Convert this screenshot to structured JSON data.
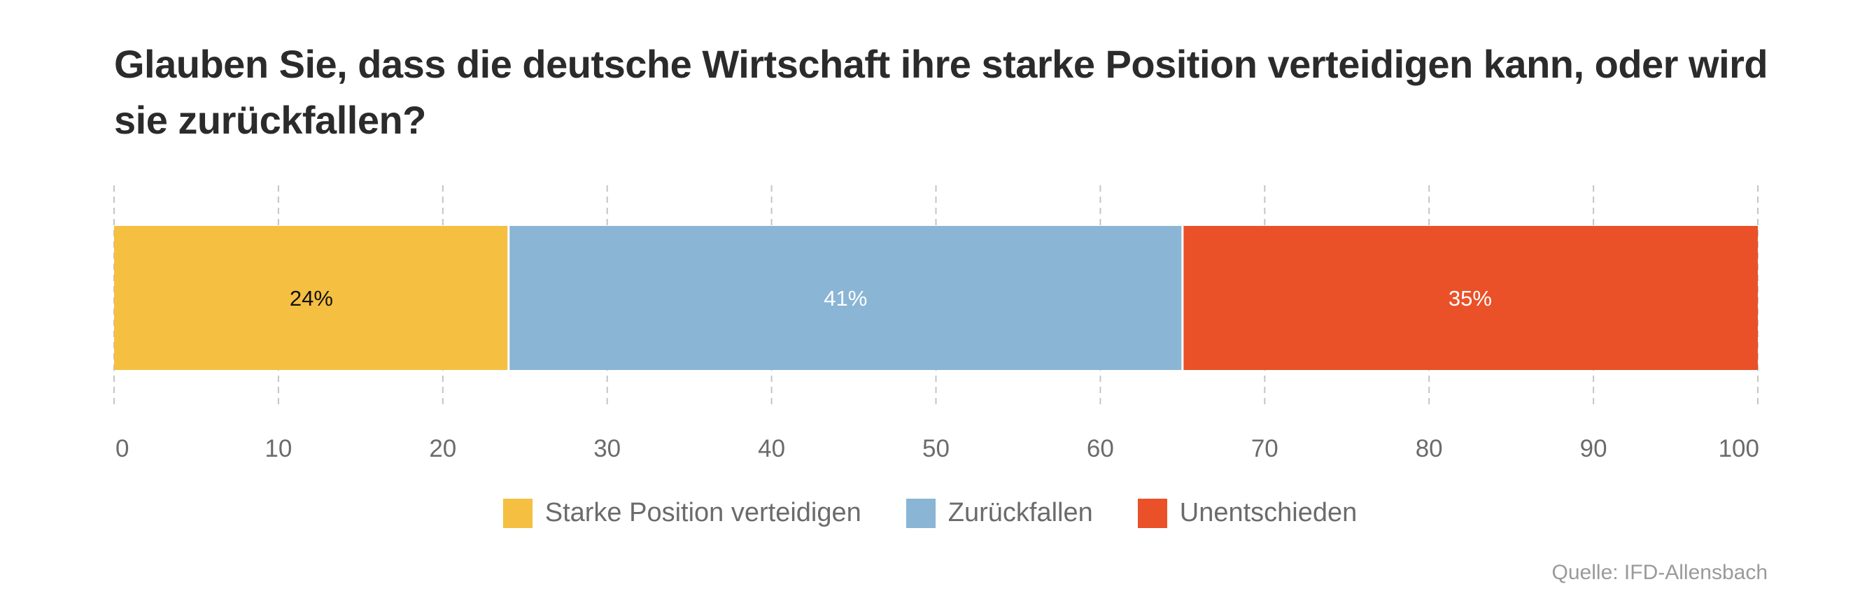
{
  "title": "Glauben Sie, dass die deutsche Wirtschaft ihre starke Position verteidigen kann, oder wird sie zurückfallen?",
  "source": "Quelle: IFD-Allensbach",
  "chart_data": {
    "type": "bar",
    "orientation": "horizontal",
    "stacked": true,
    "title": "Glauben Sie, dass die deutsche Wirtschaft ihre starke Position verteidigen kann, oder wird sie zurückfallen?",
    "xlim": [
      0,
      100
    ],
    "xticks": [
      "0",
      "10",
      "20",
      "30",
      "40",
      "50",
      "60",
      "70",
      "80",
      "90",
      "100"
    ],
    "grid": "dashed-vertical",
    "legend_position": "bottom-center",
    "series": [
      {
        "name": "Starke Position verteidigen",
        "value": 24,
        "label": "24%",
        "color": "#F5BF41",
        "label_color": "#111111"
      },
      {
        "name": "Zurückfallen",
        "value": 41,
        "label": "41%",
        "color": "#8AB5D5",
        "label_color": "#ffffff"
      },
      {
        "name": "Unentschieden",
        "value": 35,
        "label": "35%",
        "color": "#EA5128",
        "label_color": "#ffffff"
      }
    ]
  }
}
